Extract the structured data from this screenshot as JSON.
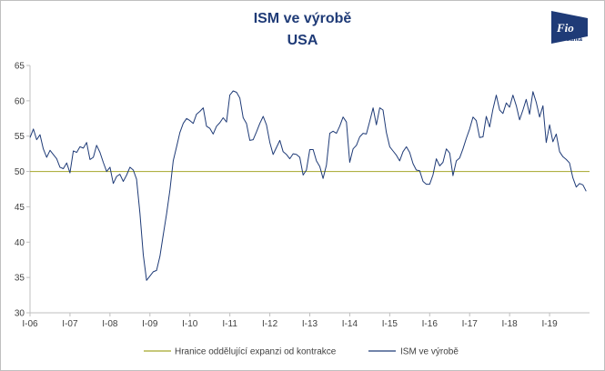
{
  "chart_data": {
    "type": "line",
    "title": "ISM ve výrobě",
    "subtitle": "USA",
    "x_start_year": 2006,
    "x_tick_labels": [
      "I-06",
      "I-07",
      "I-08",
      "I-09",
      "I-10",
      "I-11",
      "I-12",
      "I-13",
      "I-14",
      "I-15",
      "I-16",
      "I-17",
      "I-18",
      "I-19"
    ],
    "ylim": [
      30,
      65
    ],
    "y_ticks": [
      30,
      35,
      40,
      45,
      50,
      55,
      60,
      65
    ],
    "grid": false,
    "legend_position": "bottom",
    "series": [
      {
        "name": "Hranice oddělující expanzi od kontrakce",
        "color": "#a4a62a",
        "type": "reference-line",
        "value": 50
      },
      {
        "name": "ISM ve výrobě",
        "color": "#1f3b77",
        "values": [
          54.8,
          56.0,
          54.5,
          55.2,
          53.2,
          52.0,
          53.0,
          52.4,
          51.8,
          50.6,
          50.4,
          51.2,
          49.8,
          52.9,
          52.7,
          53.5,
          53.3,
          54.1,
          51.7,
          52.0,
          53.7,
          52.7,
          51.3,
          50.0,
          50.6,
          48.3,
          49.3,
          49.6,
          48.6,
          49.5,
          50.6,
          50.2,
          48.9,
          44.1,
          38.2,
          34.6,
          35.2,
          35.8,
          36.0,
          38.0,
          41.0,
          44.0,
          47.4,
          51.5,
          53.5,
          55.5,
          56.8,
          57.5,
          57.2,
          56.8,
          58.1,
          58.5,
          59.0,
          56.4,
          56.1,
          55.3,
          56.4,
          56.9,
          57.6,
          57.0,
          60.8,
          61.4,
          61.2,
          60.4,
          57.6,
          56.8,
          54.4,
          54.5,
          55.6,
          56.8,
          57.8,
          56.6,
          54.1,
          52.4,
          53.4,
          54.4,
          52.8,
          52.4,
          51.8,
          52.5,
          52.4,
          52.0,
          49.5,
          50.2,
          53.1,
          53.1,
          51.5,
          50.7,
          49.0,
          50.9,
          55.4,
          55.7,
          55.4,
          56.4,
          57.7,
          57.0,
          51.3,
          53.2,
          53.7,
          54.9,
          55.4,
          55.3,
          57.1,
          59.0,
          56.6,
          59.0,
          58.7,
          55.5,
          53.5,
          52.9,
          52.3,
          51.5,
          52.8,
          53.5,
          52.7,
          51.1,
          50.2,
          50.1,
          48.6,
          48.2,
          48.2,
          49.5,
          51.8,
          50.8,
          51.3,
          53.2,
          52.6,
          49.4,
          51.5,
          51.9,
          53.2,
          54.7,
          56.0,
          57.7,
          57.2,
          54.8,
          54.9,
          57.8,
          56.3,
          58.8,
          60.8,
          58.7,
          58.2,
          59.7,
          59.1,
          60.8,
          59.3,
          57.3,
          58.7,
          60.2,
          58.1,
          61.3,
          59.8,
          57.7,
          59.3,
          54.1,
          56.6,
          54.2,
          55.3,
          52.8,
          52.1,
          51.7,
          51.2,
          49.1,
          47.8,
          48.3,
          48.1,
          47.2
        ]
      }
    ]
  },
  "logo": {
    "text": "Fio",
    "label": "Fio banka"
  }
}
